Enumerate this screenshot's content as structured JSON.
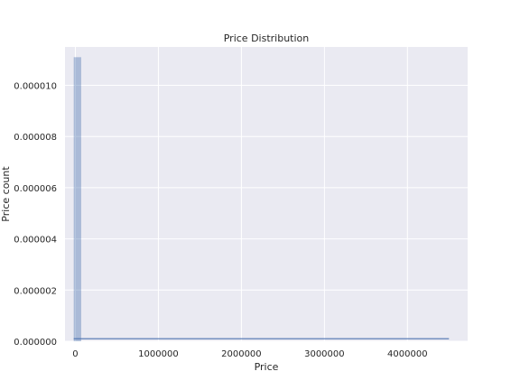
{
  "chart_data": {
    "type": "bar",
    "title": "Price Distribution",
    "xlabel": "Price",
    "ylabel": "Price count",
    "xlim": [
      -125000,
      4725000
    ],
    "ylim": [
      0,
      1.15e-05
    ],
    "xticks": [
      0,
      1000000,
      2000000,
      3000000,
      4000000
    ],
    "xtick_labels": [
      "0",
      "1000000",
      "2000000",
      "3000000",
      "4000000"
    ],
    "yticks": [
      0,
      2e-06,
      4e-06,
      6e-06,
      8e-06,
      1e-05
    ],
    "ytick_labels": [
      "0.000000",
      "0.000002",
      "0.000004",
      "0.000006",
      "0.000008",
      "0.000010"
    ],
    "bins": [
      {
        "x0": -20000,
        "x1": 70000,
        "count": 1.11e-05
      }
    ],
    "kde_line": [
      [
        -20000,
        1e-07
      ],
      [
        4500000,
        1e-07
      ]
    ],
    "grid": true,
    "colors": {
      "background": "#eaeaf2",
      "grid": "#ffffff",
      "bar": "#4c72b0",
      "line": "#4c72b0"
    }
  }
}
